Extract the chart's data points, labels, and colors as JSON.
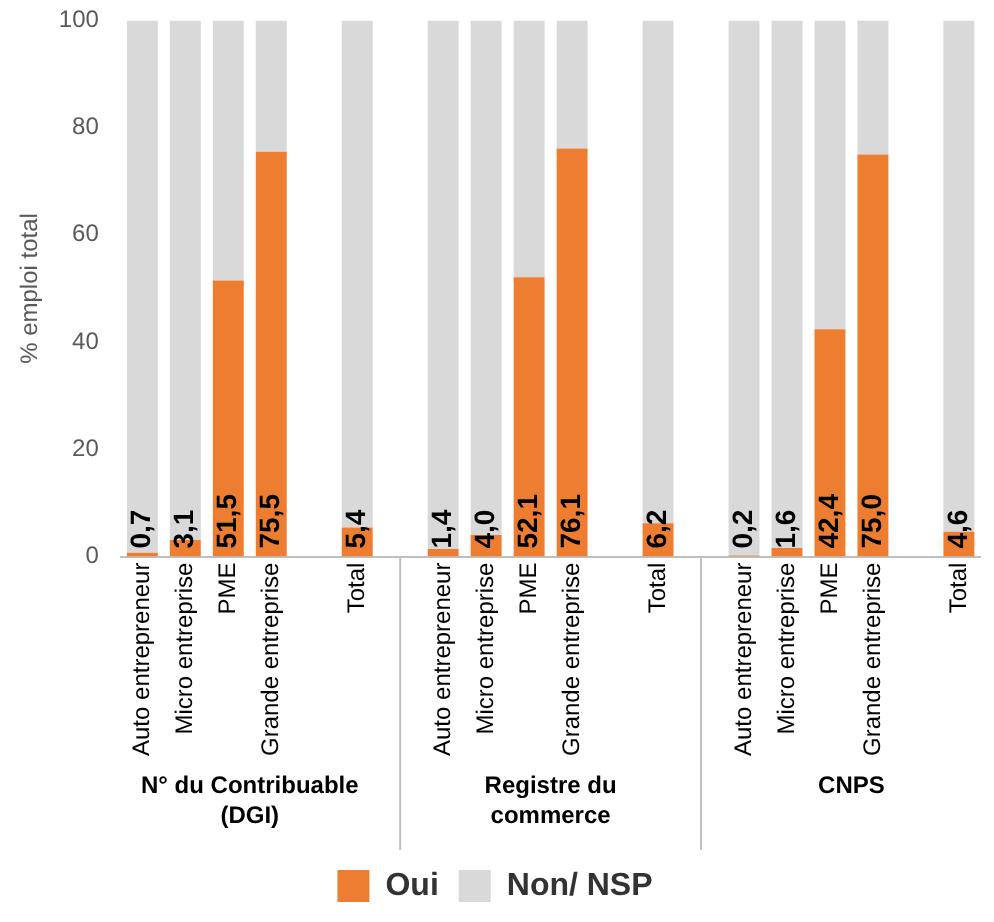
{
  "chart_data": {
    "type": "bar",
    "stacked": true,
    "ylabel": "% emploi total",
    "categories": [
      "Auto entrepreneur",
      "Micro entreprise",
      "PME",
      "Grande entreprise",
      null,
      "Total",
      null,
      "Auto entrepreneur",
      "Micro entreprise",
      "PME",
      "Grande entreprise",
      null,
      "Total",
      null,
      "Auto entrepreneur",
      "Micro entreprise",
      "PME",
      "Grande entreprise",
      null,
      "Total"
    ],
    "series": [
      {
        "name": "Oui",
        "color": "#ed7d31",
        "values": [
          0.7,
          3.1,
          51.5,
          75.5,
          null,
          5.4,
          null,
          1.4,
          4.0,
          52.1,
          76.1,
          null,
          6.2,
          null,
          0.2,
          1.6,
          42.4,
          75.0,
          null,
          4.6
        ],
        "value_labels": [
          "0,7",
          "3,1",
          "51,5",
          "75,5",
          null,
          "5,4",
          null,
          "1,4",
          "4,0",
          "52,1",
          "76,1",
          null,
          "6,2",
          null,
          "0,2",
          "1,6",
          "42,4",
          "75,0",
          null,
          "4,6"
        ]
      },
      {
        "name": "Non/ NSP",
        "color": "#d9d9d9",
        "values": [
          99.3,
          96.9,
          48.5,
          24.5,
          null,
          94.6,
          null,
          98.6,
          96.0,
          47.9,
          23.9,
          null,
          93.8,
          null,
          99.8,
          98.4,
          57.6,
          25.0,
          null,
          95.4
        ]
      }
    ],
    "ylim": [
      0,
      100
    ],
    "yticks": [
      0,
      20,
      40,
      60,
      80,
      100
    ],
    "grid": false,
    "legend": "bottom",
    "annotations": [
      "N° du Contribuable (DGI)",
      "Registre du commerce",
      "CNPS"
    ]
  }
}
